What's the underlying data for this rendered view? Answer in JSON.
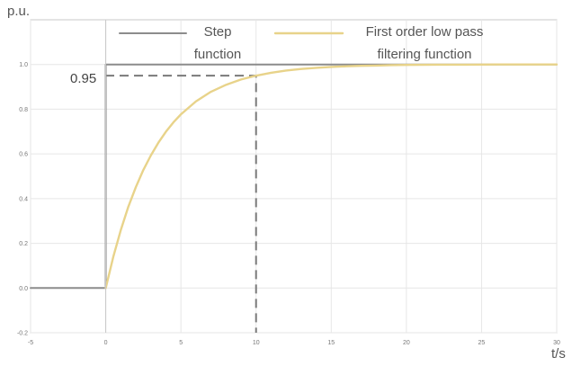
{
  "chart_data": {
    "type": "line",
    "title": "",
    "xlabel": "t/s",
    "ylabel": "p.u.",
    "xlim": [
      -5,
      30
    ],
    "ylim": [
      -0.2,
      1.2
    ],
    "x_ticks": [
      "-5",
      "0",
      "5",
      "10",
      "15",
      "20",
      "25",
      "30"
    ],
    "y_ticks": [
      "-0.2",
      "0.0",
      "0.2",
      "0.4",
      "0.6",
      "0.8",
      "1.0"
    ],
    "grid": true,
    "legend_position": "top",
    "series": [
      {
        "name": "Step function",
        "legend_lines": [
          "Step",
          "function"
        ],
        "color": "#8c8c8c",
        "x": [
          -5,
          0,
          0,
          30
        ],
        "y": [
          0,
          0,
          1,
          1
        ]
      },
      {
        "name": "First order low pass filtering function",
        "legend_lines": [
          "First order low pass",
          "filtering function"
        ],
        "color": "#e8d38a",
        "time_constant": 3.33,
        "x": [
          0,
          0.5,
          1,
          1.5,
          2,
          2.5,
          3,
          3.5,
          4,
          4.5,
          5,
          6,
          7,
          8,
          9,
          10,
          11,
          12,
          13,
          14,
          15,
          16,
          17,
          18,
          19,
          20,
          22,
          24,
          26,
          28,
          30
        ],
        "y": [
          0,
          0.139,
          0.259,
          0.363,
          0.451,
          0.528,
          0.593,
          0.65,
          0.699,
          0.741,
          0.777,
          0.835,
          0.878,
          0.909,
          0.933,
          0.95,
          0.963,
          0.973,
          0.98,
          0.985,
          0.989,
          0.992,
          0.994,
          0.995,
          0.997,
          0.998,
          0.999,
          0.999,
          1.0,
          1.0,
          1.0
        ]
      }
    ],
    "annotations": [
      {
        "label": "0.95",
        "x": 10,
        "y": 0.95,
        "style": "dashed"
      }
    ]
  }
}
